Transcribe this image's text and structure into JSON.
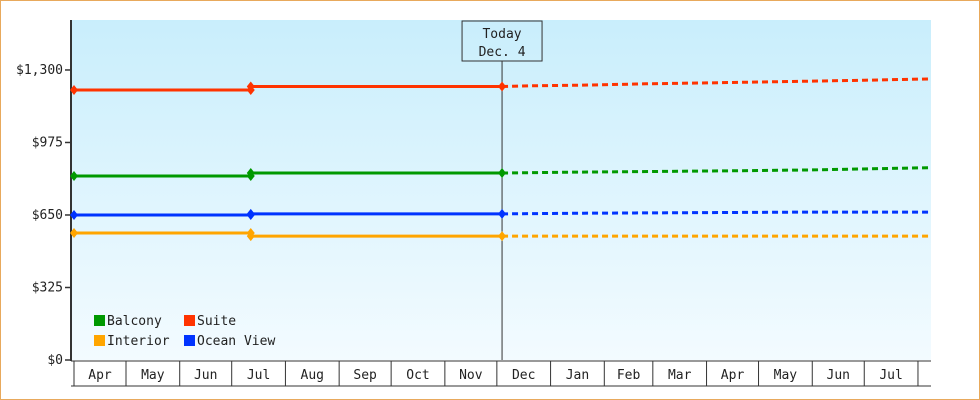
{
  "chart_data": {
    "type": "line",
    "title": "",
    "xlabel": "",
    "ylabel": "",
    "ylim": [
      0,
      1524
    ],
    "y_ticks": [
      "$0",
      "$325",
      "$650",
      "$975",
      "$1,300"
    ],
    "y_tick_values": [
      0,
      325,
      650,
      975,
      1300
    ],
    "x_ticks": [
      "Apr",
      "May",
      "Jun",
      "Jul",
      "Aug",
      "Sep",
      "Oct",
      "Nov",
      "Dec",
      "Jan",
      "Feb",
      "Mar",
      "Apr",
      "May",
      "Jun",
      "Jul"
    ],
    "grid": false,
    "legend_position": "bottom-left",
    "today_marker": {
      "line1": "Today",
      "line2": "Dec. 4",
      "date": "Dec 4"
    },
    "series": [
      {
        "name": "Balcony",
        "color": "#009900",
        "actual": [
          [
            "Apr 1",
            825
          ],
          [
            "Jul 12",
            825
          ],
          [
            "Jul 12",
            838
          ],
          [
            "Dec 4",
            838
          ]
        ],
        "forecast": [
          [
            "Dec 4",
            838
          ],
          [
            "Jan 15",
            842
          ],
          [
            "Apr 15",
            848
          ],
          [
            "Jun 1",
            852
          ],
          [
            "Aug 10",
            862
          ]
        ]
      },
      {
        "name": "Suite",
        "color": "#ff3300",
        "actual": [
          [
            "Apr 1",
            1210
          ],
          [
            "Jul 12",
            1210
          ],
          [
            "Jul 12",
            1226
          ],
          [
            "Dec 4",
            1226
          ]
        ],
        "forecast": [
          [
            "Dec 4",
            1226
          ],
          [
            "Dec 20",
            1229
          ],
          [
            "Jan 20",
            1232
          ],
          [
            "Feb 25",
            1238
          ],
          [
            "Apr 1",
            1242
          ],
          [
            "May 1",
            1246
          ],
          [
            "Jun 1",
            1250
          ],
          [
            "Jul 1",
            1254
          ],
          [
            "Aug 10",
            1260
          ]
        ]
      },
      {
        "name": "Interior",
        "color": "#ffa500",
        "actual": [
          [
            "Apr 1",
            569
          ],
          [
            "Jul 12",
            569
          ],
          [
            "Jul 12",
            555
          ],
          [
            "Dec 4",
            555
          ]
        ],
        "forecast": [
          [
            "Dec 4",
            555
          ],
          [
            "Aug 10",
            555
          ]
        ]
      },
      {
        "name": "Ocean View",
        "color": "#0033ff",
        "actual": [
          [
            "Apr 1",
            650
          ],
          [
            "Jul 12",
            650
          ],
          [
            "Jul 12",
            655
          ],
          [
            "Dec 4",
            655
          ]
        ],
        "forecast": [
          [
            "Dec 4",
            655
          ],
          [
            "Jan 20",
            658
          ],
          [
            "Jun 1",
            663
          ],
          [
            "Aug 10",
            663
          ]
        ]
      }
    ]
  }
}
